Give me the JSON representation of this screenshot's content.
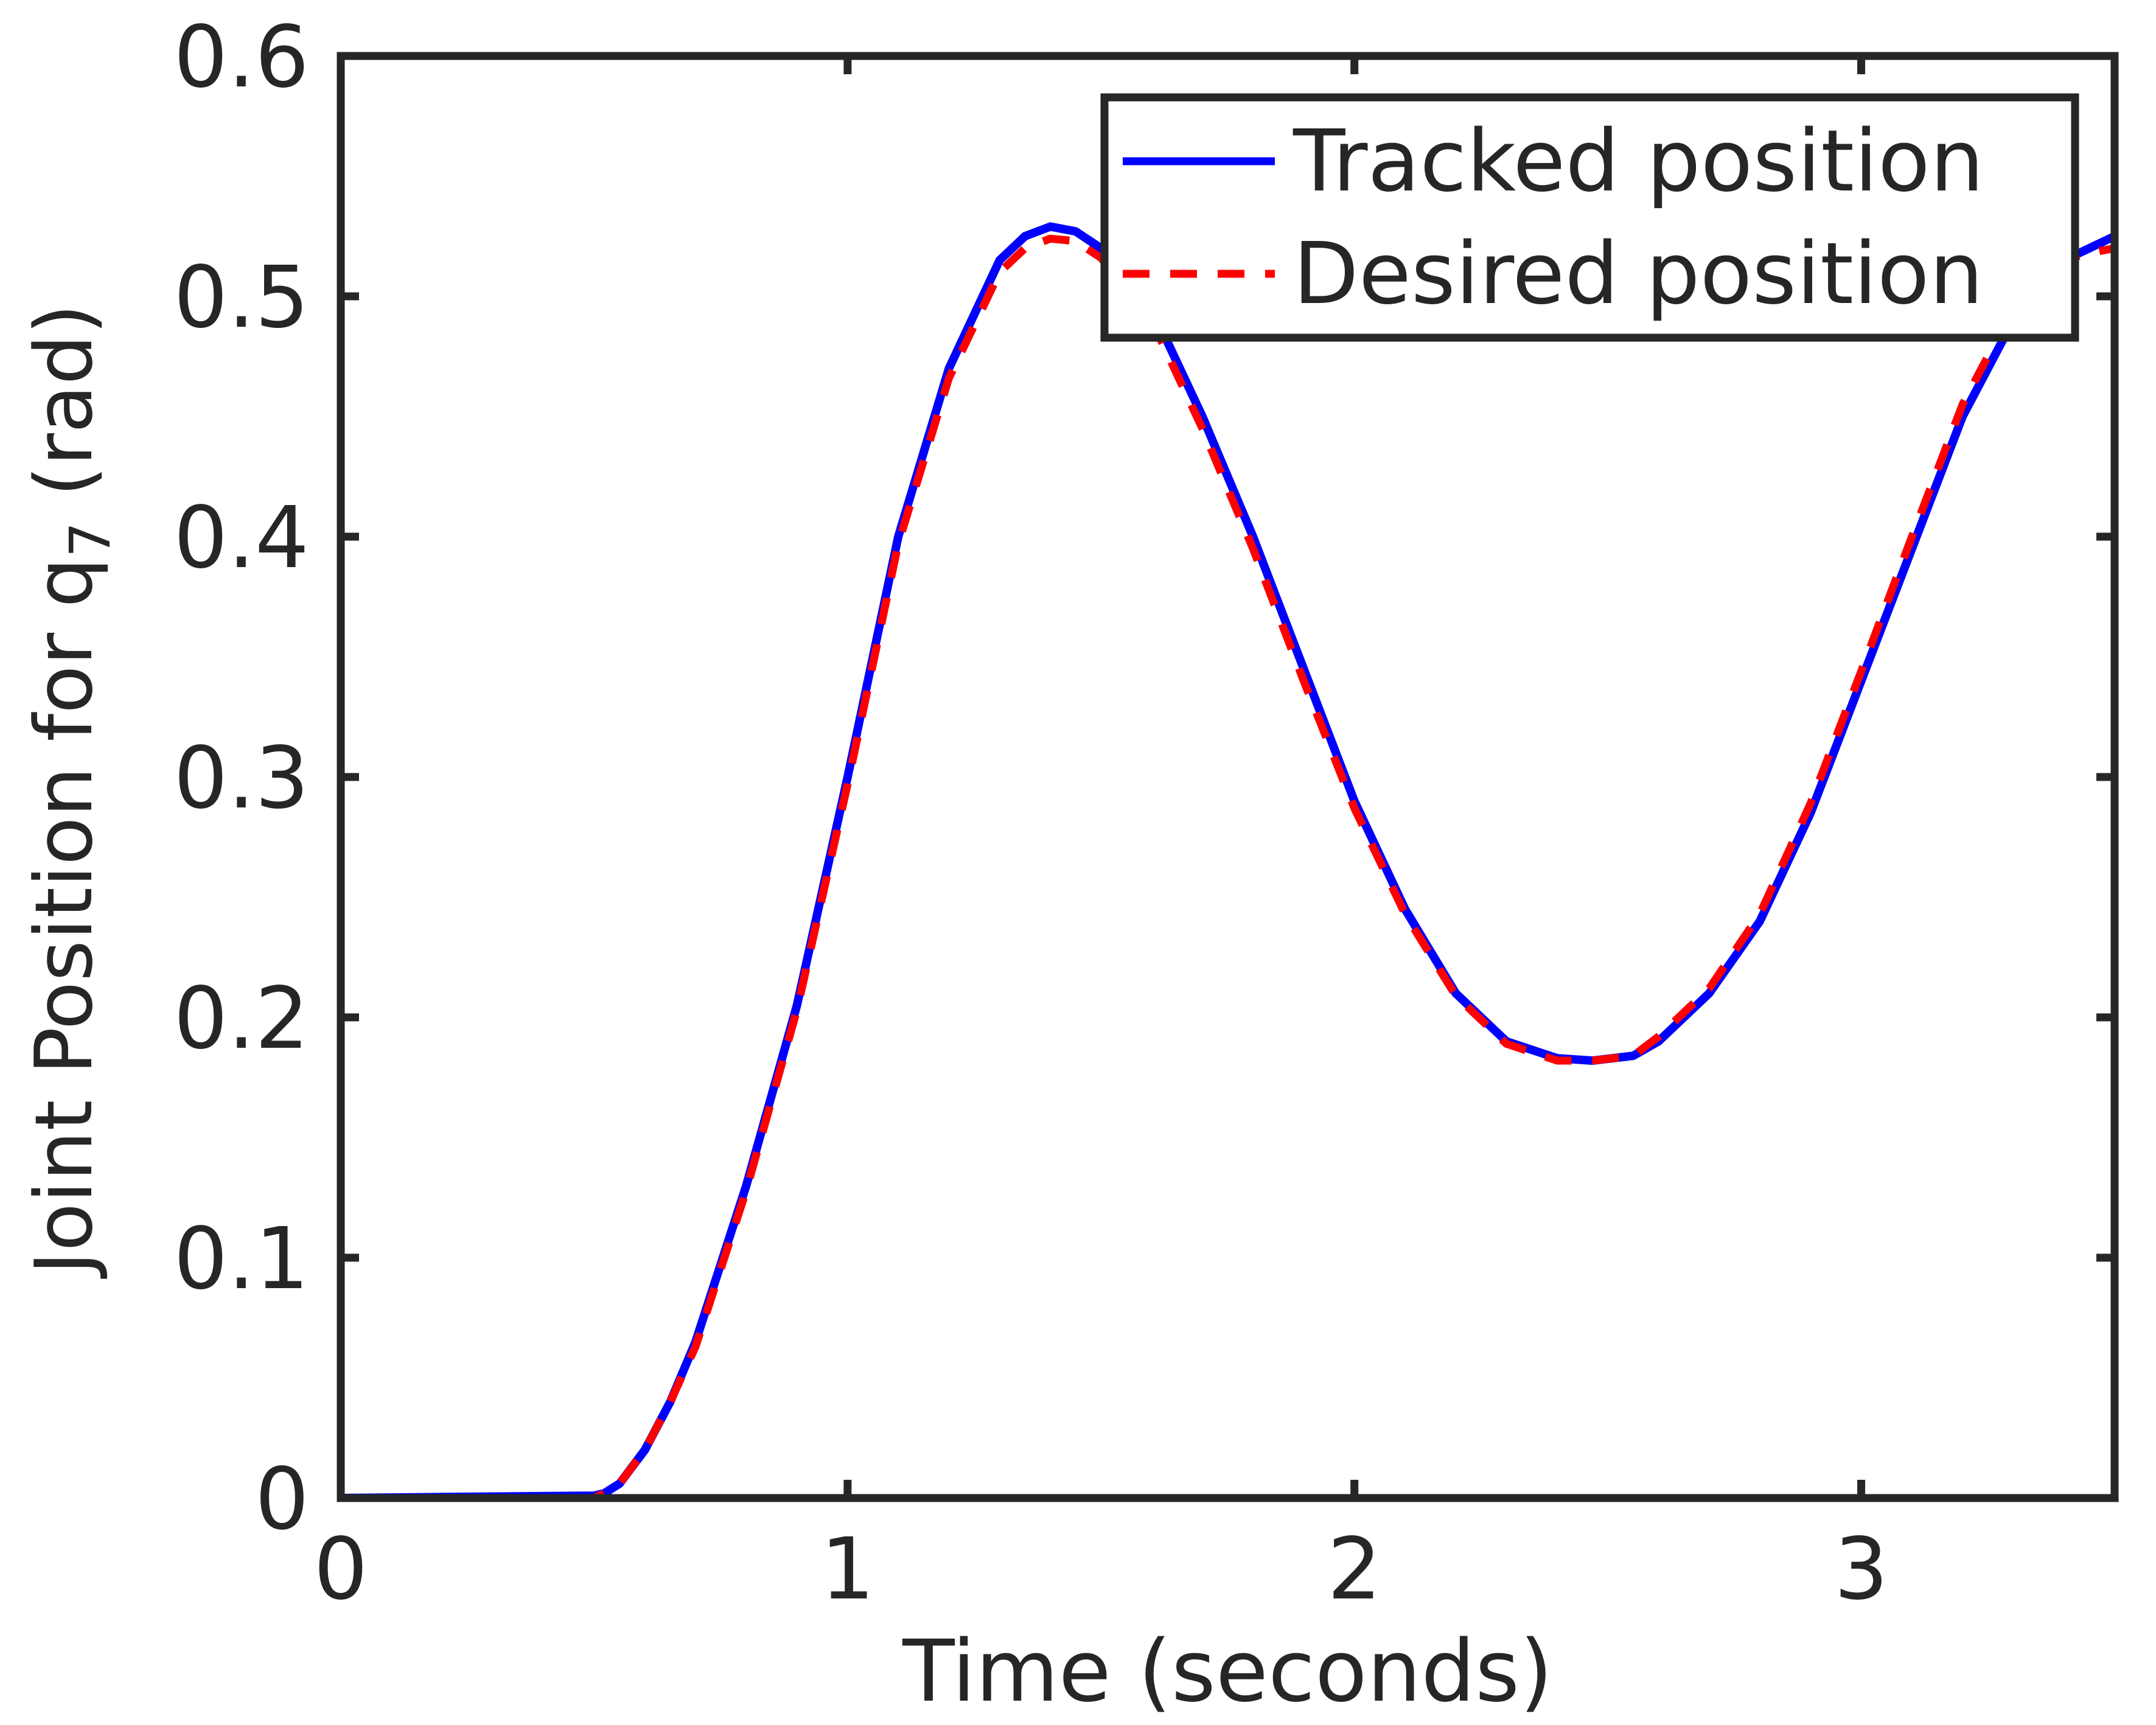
{
  "chart_data": {
    "type": "line",
    "xlabel": "Time (seconds)",
    "ylabel": "Joint Position for q",
    "ylabel_subscript": "7",
    "ylabel_unit": " (rad)",
    "xlim": [
      0,
      3.5
    ],
    "ylim": [
      0,
      0.6
    ],
    "x_ticks": [
      0,
      1,
      2,
      3
    ],
    "x_tick_labels": [
      "0",
      "1",
      "2",
      "3"
    ],
    "y_ticks": [
      0,
      0.1,
      0.2,
      0.3,
      0.4,
      0.5,
      0.6
    ],
    "y_tick_labels": [
      "0",
      "0.1",
      "0.2",
      "0.3",
      "0.4",
      "0.5",
      "0.6"
    ],
    "grid": false,
    "legend_position": "top-right",
    "series": [
      {
        "name": "Tracked position",
        "color": "#0000ff",
        "style": "solid",
        "x": [
          0,
          0.25,
          0.5,
          0.52,
          0.55,
          0.6,
          0.65,
          0.7,
          0.8,
          0.9,
          1.0,
          1.1,
          1.2,
          1.3,
          1.35,
          1.4,
          1.45,
          1.5,
          1.6,
          1.7,
          1.8,
          1.9,
          2.0,
          2.1,
          2.2,
          2.3,
          2.4,
          2.47,
          2.55,
          2.6,
          2.7,
          2.8,
          2.9,
          3.0,
          3.1,
          3.2,
          3.3,
          3.4,
          3.45,
          3.5
        ],
        "y": [
          0,
          0.0005,
          0.001,
          0.002,
          0.006,
          0.02,
          0.04,
          0.065,
          0.13,
          0.205,
          0.3,
          0.4,
          0.47,
          0.515,
          0.525,
          0.529,
          0.527,
          0.52,
          0.495,
          0.45,
          0.4,
          0.345,
          0.29,
          0.245,
          0.21,
          0.19,
          0.183,
          0.182,
          0.184,
          0.19,
          0.21,
          0.24,
          0.285,
          0.34,
          0.395,
          0.45,
          0.49,
          0.515,
          0.52,
          0.525
        ]
      },
      {
        "name": "Desired position",
        "color": "#ff0000",
        "style": "dashed",
        "x": [
          0,
          0.25,
          0.5,
          0.52,
          0.55,
          0.6,
          0.65,
          0.7,
          0.8,
          0.9,
          1.0,
          1.1,
          1.2,
          1.3,
          1.35,
          1.4,
          1.45,
          1.5,
          1.6,
          1.7,
          1.8,
          1.9,
          2.0,
          2.1,
          2.2,
          2.3,
          2.4,
          2.47,
          2.55,
          2.6,
          2.7,
          2.8,
          2.9,
          3.0,
          3.1,
          3.2,
          3.3,
          3.4,
          3.45,
          3.5
        ],
        "y": [
          0,
          0,
          0,
          0.002,
          0.006,
          0.02,
          0.04,
          0.063,
          0.128,
          0.203,
          0.297,
          0.397,
          0.466,
          0.51,
          0.52,
          0.524,
          0.523,
          0.516,
          0.49,
          0.445,
          0.395,
          0.34,
          0.287,
          0.243,
          0.209,
          0.189,
          0.182,
          0.182,
          0.184,
          0.192,
          0.212,
          0.243,
          0.289,
          0.344,
          0.4,
          0.455,
          0.495,
          0.515,
          0.518,
          0.52
        ]
      }
    ]
  }
}
